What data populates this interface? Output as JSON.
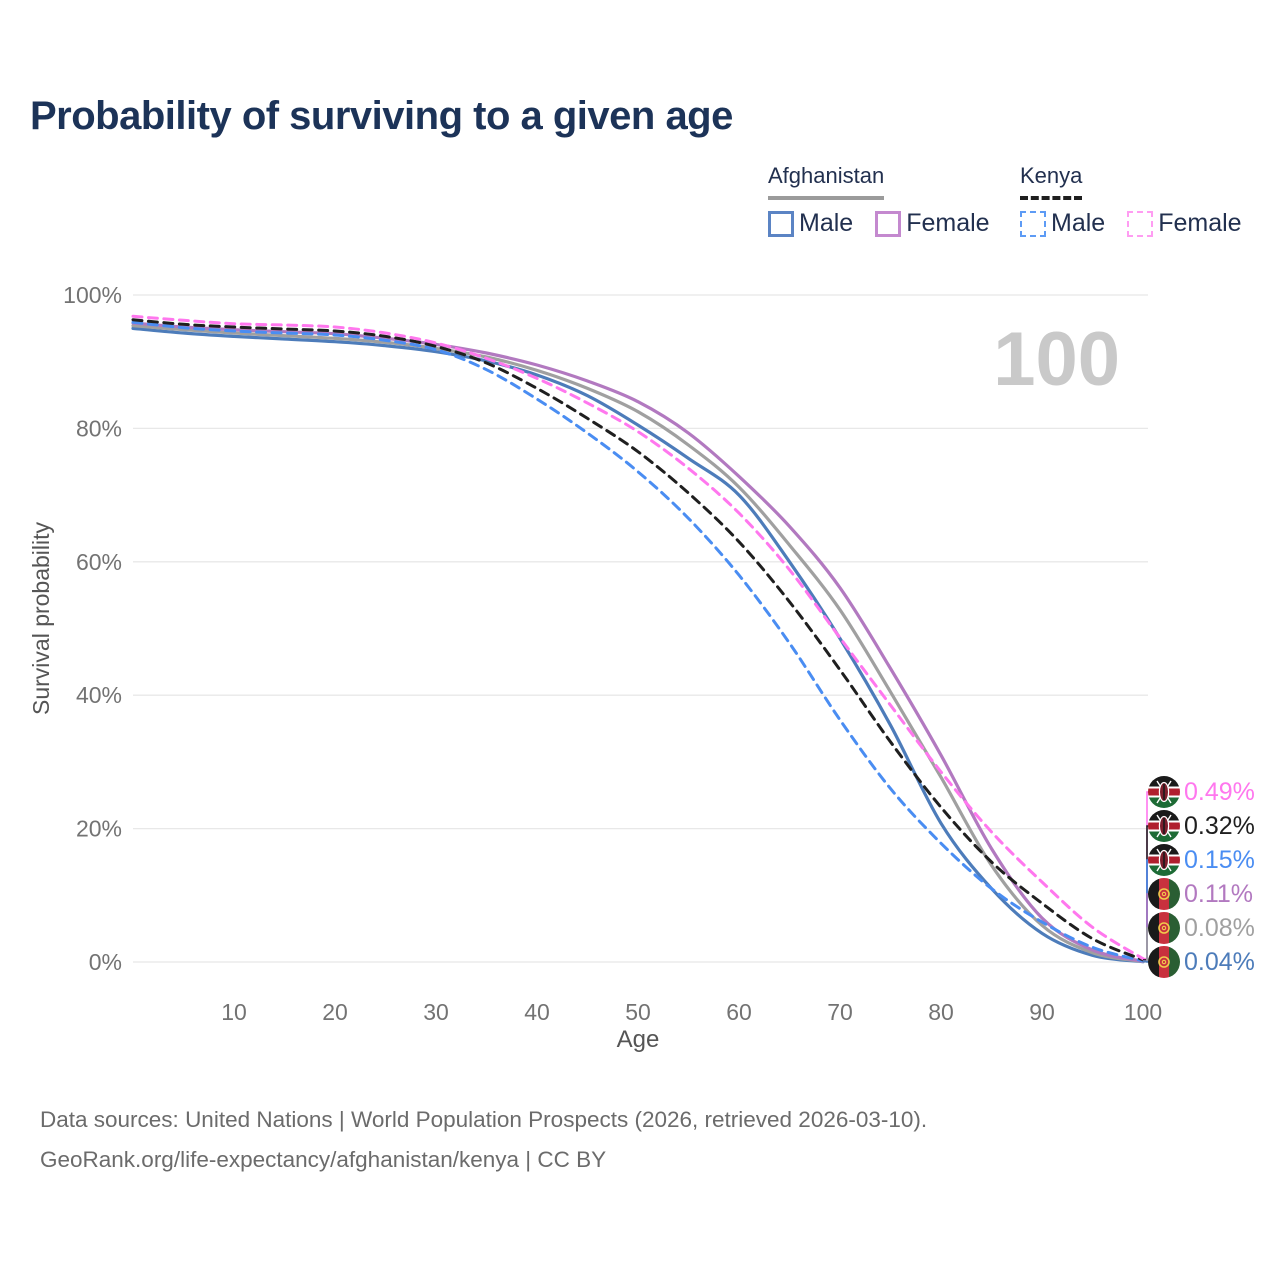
{
  "title": "Probability of surviving to a given age",
  "age_indicator": "100",
  "legend": {
    "groups": [
      {
        "name": "Afghanistan",
        "line_style": "solid",
        "underline_color": "#9b9b9b",
        "items": [
          {
            "label": "Male",
            "color": "#5b84c4"
          },
          {
            "label": "Female",
            "color": "#c489cf"
          }
        ]
      },
      {
        "name": "Kenya",
        "line_style": "dashed",
        "underline_color": "#1f1f1f",
        "items": [
          {
            "label": "Male",
            "color": "#5d9bf5"
          },
          {
            "label": "Female",
            "color": "#ff9df2"
          }
        ]
      }
    ]
  },
  "chart_data": {
    "type": "line",
    "title": "Probability of surviving to a given age",
    "xlabel": "Age",
    "ylabel": "Survival probability",
    "xlim": [
      0,
      100
    ],
    "ylim": [
      0,
      100
    ],
    "x_ticks": [
      10,
      20,
      30,
      40,
      50,
      60,
      70,
      80,
      90,
      100
    ],
    "y_ticks": [
      {
        "value": 0,
        "label": "0%"
      },
      {
        "value": 20,
        "label": "20%"
      },
      {
        "value": 40,
        "label": "40%"
      },
      {
        "value": 60,
        "label": "60%"
      },
      {
        "value": 80,
        "label": "80%"
      },
      {
        "value": 100,
        "label": "100%"
      }
    ],
    "grid": "horizontal",
    "legend_position": "top-right",
    "ages": [
      0,
      5,
      10,
      15,
      20,
      25,
      30,
      35,
      40,
      45,
      50,
      55,
      60,
      65,
      70,
      75,
      80,
      85,
      90,
      95,
      100
    ],
    "series": [
      {
        "name": "Afghanistan Male",
        "country": "Afghanistan",
        "sex": "Male",
        "color": "#4d7cba",
        "dash": "solid",
        "end_label": "0.04%",
        "values": [
          95.0,
          94.3,
          93.8,
          93.4,
          93.0,
          92.4,
          91.5,
          90.1,
          88.0,
          84.9,
          80.5,
          75.5,
          70.0,
          60.0,
          48.5,
          35.5,
          20.8,
          11.0,
          4.3,
          1.0,
          0.04
        ]
      },
      {
        "name": "Afghanistan Total",
        "country": "Afghanistan",
        "sex": "Total",
        "color": "#a0a0a0",
        "dash": "solid",
        "end_label": "0.08%",
        "values": [
          95.4,
          94.8,
          94.3,
          93.9,
          93.5,
          92.9,
          92.0,
          90.7,
          88.7,
          86.0,
          82.5,
          77.5,
          71.2,
          62.5,
          52.8,
          40.5,
          27.7,
          14.5,
          5.5,
          1.4,
          0.08
        ]
      },
      {
        "name": "Afghanistan Female",
        "country": "Afghanistan",
        "sex": "Female",
        "color": "#b279c0",
        "dash": "solid",
        "end_label": "0.11%",
        "values": [
          95.8,
          95.2,
          94.8,
          94.5,
          94.2,
          93.5,
          92.6,
          91.3,
          89.5,
          87.1,
          84.0,
          79.3,
          72.8,
          65.3,
          56.1,
          44.0,
          31.0,
          17.0,
          6.6,
          1.8,
          0.11
        ]
      },
      {
        "name": "Kenya Male",
        "country": "Kenya",
        "sex": "Male",
        "color": "#4a8df2",
        "dash": "dashed",
        "end_label": "0.15%",
        "values": [
          95.9,
          95.1,
          94.6,
          94.3,
          94.0,
          93.2,
          91.8,
          88.8,
          84.4,
          79.3,
          73.5,
          66.5,
          58.0,
          47.8,
          36.3,
          26.0,
          17.8,
          11.0,
          6.0,
          2.2,
          0.15
        ]
      },
      {
        "name": "Kenya Total",
        "country": "Kenya",
        "sex": "Total",
        "color": "#1f1f1f",
        "dash": "dashed",
        "end_label": "0.32%",
        "values": [
          96.3,
          95.6,
          95.2,
          94.9,
          94.6,
          93.8,
          92.3,
          89.8,
          86.0,
          81.5,
          76.5,
          70.3,
          63.0,
          54.0,
          43.8,
          33.0,
          23.2,
          15.0,
          8.8,
          3.5,
          0.32
        ]
      },
      {
        "name": "Kenya Female",
        "country": "Kenya",
        "sex": "Female",
        "color": "#ff77ee",
        "dash": "dashed",
        "end_label": "0.49%",
        "values": [
          96.8,
          96.2,
          95.7,
          95.5,
          95.2,
          94.3,
          92.8,
          90.5,
          87.5,
          83.8,
          79.5,
          74.0,
          67.3,
          58.8,
          48.6,
          38.5,
          28.5,
          19.5,
          12.0,
          5.2,
          0.49
        ]
      }
    ]
  },
  "footer": {
    "line1": "Data sources: United Nations | World Population Prospects (2026, retrieved 2026-03-10).",
    "line2": "GeoRank.org/life-expectancy/afghanistan/kenya | CC BY"
  }
}
